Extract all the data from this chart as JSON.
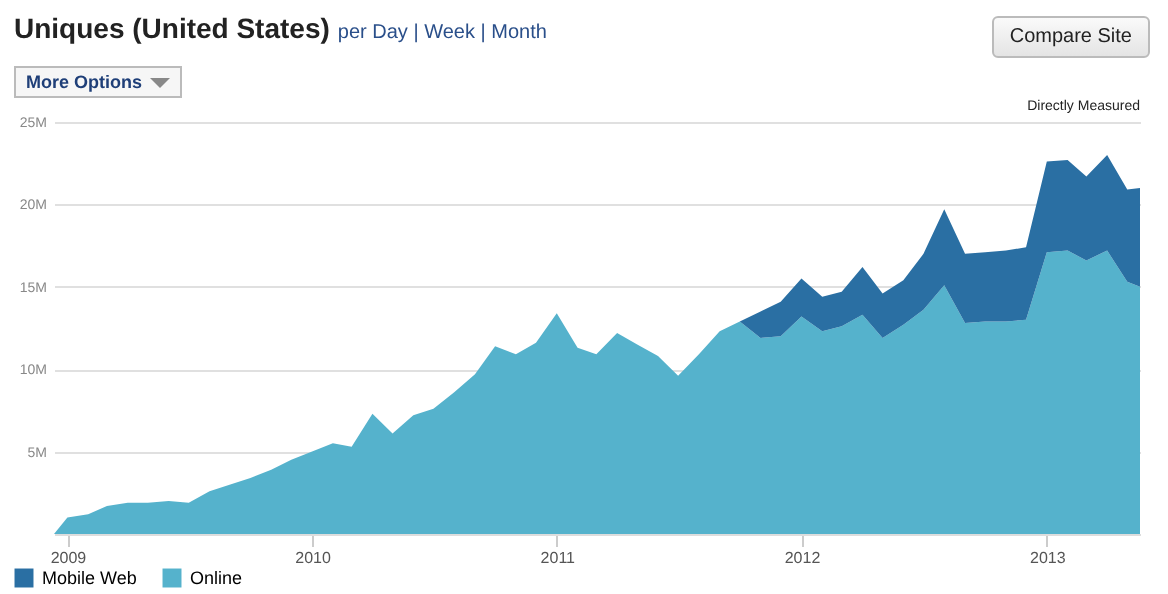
{
  "chart_data": {
    "type": "area",
    "title": "Uniques (United States)",
    "stacked": true,
    "legend": "bottom left",
    "grid": "y",
    "annotations": [
      "per Day | Week | Month",
      "Compare Site",
      "More Options",
      "Directly Measured"
    ],
    "x": [
      "2008-12-12",
      "2009-01-01",
      "2009-02-01",
      "2009-03-01",
      "2009-04-01",
      "2009-05-01",
      "2009-06-01",
      "2009-07-01",
      "2009-08-01",
      "2009-09-01",
      "2009-10-01",
      "2009-11-01",
      "2009-12-01",
      "2010-01-01",
      "2010-02-01",
      "2010-03-01",
      "2010-04-01",
      "2010-05-01",
      "2010-06-01",
      "2010-07-01",
      "2010-08-01",
      "2010-09-01",
      "2010-10-01",
      "2010-11-01",
      "2010-12-01",
      "2011-01-01",
      "2011-02-01",
      "2011-03-01",
      "2011-04-01",
      "2011-05-01",
      "2011-06-01",
      "2011-07-01",
      "2011-08-01",
      "2011-09-01",
      "2011-10-01",
      "2011-11-01",
      "2011-12-01",
      "2012-01-01",
      "2012-02-01",
      "2012-03-01",
      "2012-04-01",
      "2012-05-01",
      "2012-06-01",
      "2012-07-01",
      "2012-08-01",
      "2012-09-01",
      "2012-10-01",
      "2012-11-01",
      "2012-12-01",
      "2013-01-01",
      "2013-02-01",
      "2013-03-01",
      "2013-04-01",
      "2013-05-01",
      "2013-05-20"
    ],
    "series": [
      {
        "name": "Online",
        "color": "#55b2cc",
        "values": [
          0,
          1.0,
          1.2,
          1.7,
          1.9,
          1.9,
          2.0,
          1.9,
          2.6,
          3.0,
          3.4,
          3.9,
          4.5,
          5.0,
          5.5,
          5.3,
          7.3,
          6.1,
          7.2,
          7.6,
          8.6,
          9.7,
          11.4,
          10.9,
          11.6,
          13.4,
          11.3,
          10.9,
          12.2,
          11.5,
          10.8,
          9.6,
          10.9,
          12.3,
          12.9,
          11.9,
          12.0,
          13.2,
          12.3,
          12.6,
          13.3,
          11.9,
          12.7,
          13.6,
          15.1,
          12.8,
          12.9,
          12.9,
          13.0,
          17.1,
          17.2,
          16.6,
          17.2,
          15.3,
          15.0
        ]
      },
      {
        "name": "Mobile Web",
        "color": "#2a6fa3",
        "values": [
          0,
          0,
          0,
          0,
          0,
          0,
          0,
          0,
          0,
          0,
          0,
          0,
          0,
          0,
          0,
          0,
          0,
          0,
          0,
          0,
          0,
          0,
          0,
          0,
          0,
          0,
          0,
          0,
          0,
          0,
          0,
          0,
          0,
          0,
          0,
          1.6,
          2.1,
          2.3,
          2.1,
          2.1,
          2.9,
          2.7,
          2.7,
          3.4,
          4.6,
          4.2,
          4.2,
          4.3,
          4.4,
          5.5,
          5.5,
          5.1,
          5.8,
          5.6,
          6.0
        ]
      }
    ],
    "xlim": [
      "2008-12-12",
      "2013-05-20"
    ],
    "xticks": [
      "2009",
      "2010",
      "2011",
      "2012",
      "2013"
    ],
    "ylim": [
      0,
      25
    ],
    "yticks": [
      {
        "value": 5,
        "label": "5M"
      },
      {
        "value": 10,
        "label": "10M"
      },
      {
        "value": 15,
        "label": "15M"
      },
      {
        "value": 20,
        "label": "20M"
      },
      {
        "value": 25,
        "label": "25M"
      }
    ]
  }
}
